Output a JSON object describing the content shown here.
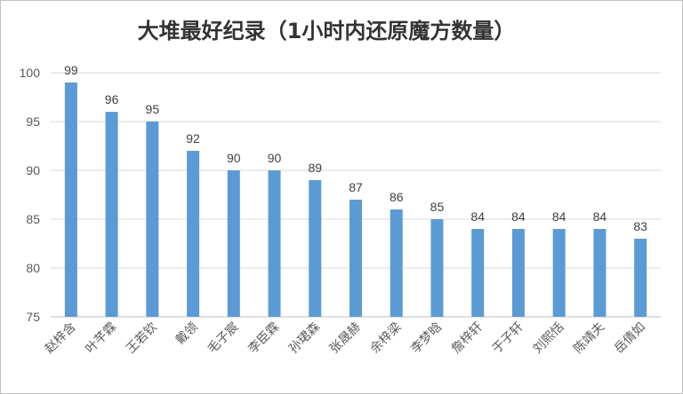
{
  "chart_data": {
    "type": "bar",
    "title": "大堆最好纪录（1小时内还原魔方数量）",
    "categories": [
      "赵梓含",
      "叶芊霖",
      "王若钦",
      "戴领",
      "毛子宸",
      "李臣霖",
      "孙珺森",
      "张晟赫",
      "余梓梁",
      "李梦晗",
      "詹梓轩",
      "于子轩",
      "刘熙恬",
      "陈靖夫",
      "岳倩如"
    ],
    "values": [
      99,
      96,
      95,
      92,
      90,
      90,
      89,
      87,
      86,
      85,
      84,
      84,
      84,
      84,
      83
    ],
    "ylim": [
      75,
      100
    ],
    "yticks": [
      75,
      80,
      85,
      90,
      95,
      100
    ],
    "grid": true,
    "legend": "none",
    "bar_color": "#5b9bd5",
    "xlabel": "",
    "ylabel": ""
  }
}
